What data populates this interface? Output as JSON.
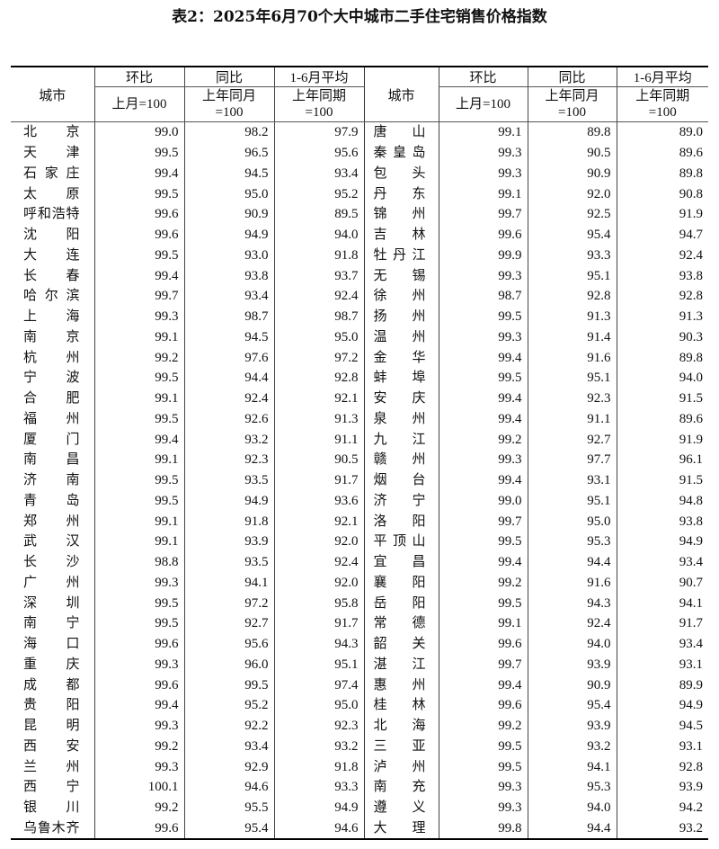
{
  "title": "表2：2025年6月70个大中城市二手住宅销售价格指数",
  "header": {
    "city": "城市",
    "mom": "环比",
    "mom_base": "上月=100",
    "yoy": "同比",
    "yoy_base_1": "上年同月",
    "yoy_base_2": "=100",
    "avg": "1-6月平均",
    "avg_base_1": "上年同期",
    "avg_base_2": "=100"
  },
  "left_rows": [
    [
      "北京",
      "99.0",
      "98.2",
      "97.9"
    ],
    [
      "天津",
      "99.5",
      "96.5",
      "95.6"
    ],
    [
      "石家庄",
      "99.4",
      "94.5",
      "93.4"
    ],
    [
      "太原",
      "99.5",
      "95.0",
      "95.2"
    ],
    [
      "呼和浩特",
      "99.6",
      "90.9",
      "89.5"
    ],
    [
      "沈阳",
      "99.6",
      "94.9",
      "94.0"
    ],
    [
      "大连",
      "99.5",
      "93.0",
      "91.8"
    ],
    [
      "长春",
      "99.4",
      "93.8",
      "93.7"
    ],
    [
      "哈尔滨",
      "99.7",
      "93.4",
      "92.4"
    ],
    [
      "上海",
      "99.3",
      "98.7",
      "98.7"
    ],
    [
      "南京",
      "99.1",
      "94.5",
      "95.0"
    ],
    [
      "杭州",
      "99.2",
      "97.6",
      "97.2"
    ],
    [
      "宁波",
      "99.5",
      "94.4",
      "92.8"
    ],
    [
      "合肥",
      "99.1",
      "92.4",
      "92.1"
    ],
    [
      "福州",
      "99.5",
      "92.6",
      "91.3"
    ],
    [
      "厦门",
      "99.4",
      "93.2",
      "91.1"
    ],
    [
      "南昌",
      "99.1",
      "92.3",
      "90.5"
    ],
    [
      "济南",
      "99.5",
      "93.5",
      "91.7"
    ],
    [
      "青岛",
      "99.5",
      "94.9",
      "93.6"
    ],
    [
      "郑州",
      "99.1",
      "91.8",
      "92.1"
    ],
    [
      "武汉",
      "99.1",
      "93.9",
      "92.0"
    ],
    [
      "长沙",
      "98.8",
      "93.5",
      "92.4"
    ],
    [
      "广州",
      "99.3",
      "94.1",
      "92.0"
    ],
    [
      "深圳",
      "99.5",
      "97.2",
      "95.8"
    ],
    [
      "南宁",
      "99.5",
      "92.7",
      "91.7"
    ],
    [
      "海口",
      "99.6",
      "95.6",
      "94.3"
    ],
    [
      "重庆",
      "99.3",
      "96.0",
      "95.1"
    ],
    [
      "成都",
      "99.6",
      "99.5",
      "97.4"
    ],
    [
      "贵阳",
      "99.4",
      "95.2",
      "95.0"
    ],
    [
      "昆明",
      "99.3",
      "92.2",
      "92.3"
    ],
    [
      "西安",
      "99.2",
      "93.4",
      "93.2"
    ],
    [
      "兰州",
      "99.3",
      "92.9",
      "91.8"
    ],
    [
      "西宁",
      "100.1",
      "94.6",
      "93.3"
    ],
    [
      "银川",
      "99.2",
      "95.5",
      "94.9"
    ],
    [
      "乌鲁木齐",
      "99.6",
      "95.4",
      "94.6"
    ]
  ],
  "right_rows": [
    [
      "唐山",
      "99.1",
      "89.8",
      "89.0"
    ],
    [
      "秦皇岛",
      "99.3",
      "90.5",
      "89.6"
    ],
    [
      "包头",
      "99.3",
      "90.9",
      "89.8"
    ],
    [
      "丹东",
      "99.1",
      "92.0",
      "90.8"
    ],
    [
      "锦州",
      "99.7",
      "92.5",
      "91.9"
    ],
    [
      "吉林",
      "99.6",
      "95.4",
      "94.7"
    ],
    [
      "牡丹江",
      "99.9",
      "93.3",
      "92.4"
    ],
    [
      "无锡",
      "99.3",
      "95.1",
      "93.8"
    ],
    [
      "徐州",
      "98.7",
      "92.8",
      "92.8"
    ],
    [
      "扬州",
      "99.5",
      "91.3",
      "91.3"
    ],
    [
      "温州",
      "99.3",
      "91.4",
      "90.3"
    ],
    [
      "金华",
      "99.4",
      "91.6",
      "89.8"
    ],
    [
      "蚌埠",
      "99.5",
      "95.1",
      "94.0"
    ],
    [
      "安庆",
      "99.4",
      "92.3",
      "91.5"
    ],
    [
      "泉州",
      "99.4",
      "91.1",
      "89.6"
    ],
    [
      "九江",
      "99.2",
      "92.7",
      "91.9"
    ],
    [
      "赣州",
      "99.3",
      "97.7",
      "96.1"
    ],
    [
      "烟台",
      "99.4",
      "93.1",
      "91.5"
    ],
    [
      "济宁",
      "99.0",
      "95.1",
      "94.8"
    ],
    [
      "洛阳",
      "99.7",
      "95.0",
      "93.8"
    ],
    [
      "平顶山",
      "99.5",
      "95.3",
      "94.9"
    ],
    [
      "宜昌",
      "99.4",
      "94.4",
      "93.4"
    ],
    [
      "襄阳",
      "99.2",
      "91.6",
      "90.7"
    ],
    [
      "岳阳",
      "99.5",
      "94.3",
      "94.1"
    ],
    [
      "常德",
      "99.1",
      "92.4",
      "91.7"
    ],
    [
      "韶关",
      "99.6",
      "94.0",
      "93.4"
    ],
    [
      "湛江",
      "99.7",
      "93.9",
      "93.1"
    ],
    [
      "惠州",
      "99.4",
      "90.9",
      "89.9"
    ],
    [
      "桂林",
      "99.6",
      "95.4",
      "94.9"
    ],
    [
      "北海",
      "99.2",
      "93.9",
      "94.5"
    ],
    [
      "三亚",
      "99.5",
      "93.2",
      "93.1"
    ],
    [
      "泸州",
      "99.5",
      "94.1",
      "92.8"
    ],
    [
      "南充",
      "99.3",
      "95.3",
      "93.9"
    ],
    [
      "遵义",
      "99.3",
      "94.0",
      "94.2"
    ],
    [
      "大理",
      "99.8",
      "94.4",
      "93.2"
    ]
  ]
}
